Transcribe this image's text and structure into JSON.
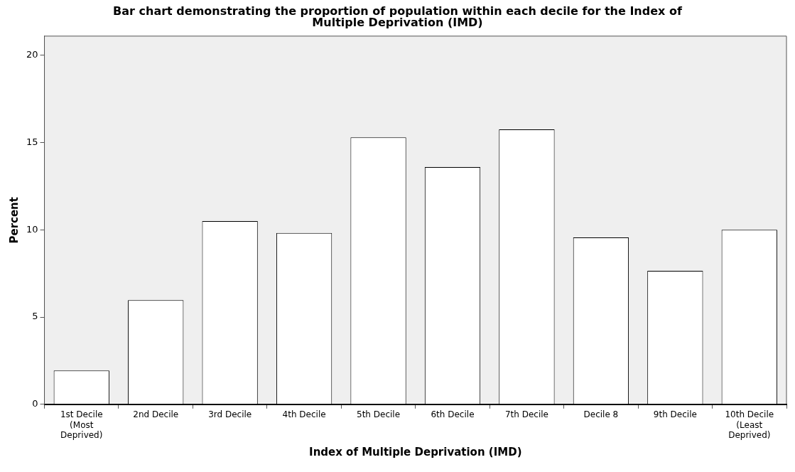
{
  "chart_data": {
    "type": "bar",
    "title": "Bar chart demonstrating the proportion of population within each decile for the Index of Multiple Deprivation (IMD)",
    "xlabel": "Index of Multiple Deprivation (IMD)",
    "ylabel": "Percent",
    "categories": [
      "1st Decile\n(Most\nDeprived)",
      "2nd Decile",
      "3rd Decile",
      "4th Decile",
      "5th Decile",
      "6th Decile",
      "7th Decile",
      "Decile 8",
      "9th Decile",
      "10th Decile\n(Least\nDeprived)"
    ],
    "values": [
      1.94,
      5.97,
      10.5,
      9.82,
      15.3,
      13.6,
      15.76,
      9.56,
      7.65,
      10.0
    ],
    "color": "#ffffff",
    "ylim": [
      0,
      21.1
    ],
    "yticks": [
      0,
      5,
      10,
      15,
      20
    ],
    "grid": false,
    "legend": false
  }
}
